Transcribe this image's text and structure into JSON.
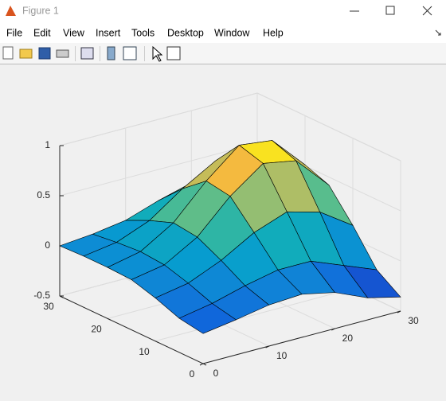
{
  "window": {
    "title": "Figure 1",
    "menu": [
      "File",
      "Edit",
      "View",
      "Insert",
      "Tools",
      "Desktop",
      "Window",
      "Help"
    ]
  },
  "chart_data": {
    "type": "surface",
    "x": [
      0,
      5,
      10,
      15,
      20,
      25,
      30
    ],
    "y": [
      0,
      5,
      10,
      15,
      20,
      25,
      30
    ],
    "z": [
      [
        -0.2,
        -0.15,
        -0.09,
        -0.07,
        -0.14,
        -0.28,
        -0.36
      ],
      [
        -0.16,
        -0.1,
        -0.01,
        0.06,
        0.06,
        -0.07,
        -0.2
      ],
      [
        -0.07,
        -0.01,
        0.13,
        0.32,
        0.44,
        0.35,
        0.13
      ],
      [
        0,
        0.06,
        0.25,
        0.57,
        0.81,
        0.75,
        0.42
      ],
      [
        0.01,
        0.08,
        0.28,
        0.61,
        0.88,
        0.84,
        0.51
      ],
      [
        0.01,
        0.06,
        0.19,
        0.42,
        0.61,
        0.59,
        0.36
      ],
      [
        0,
        0.03,
        0.08,
        0.19,
        0.28,
        0.27,
        0.17
      ]
    ],
    "xlim": [
      0,
      30
    ],
    "ylim": [
      0,
      30
    ],
    "zlim": [
      -0.5,
      1
    ],
    "xticks": [
      0,
      10,
      20,
      30
    ],
    "yticks": [
      0,
      10,
      20,
      30
    ],
    "zticks": [
      -0.5,
      0,
      0.5,
      1
    ],
    "grid": true,
    "colormap": "parula",
    "edge_color": "#000000"
  }
}
